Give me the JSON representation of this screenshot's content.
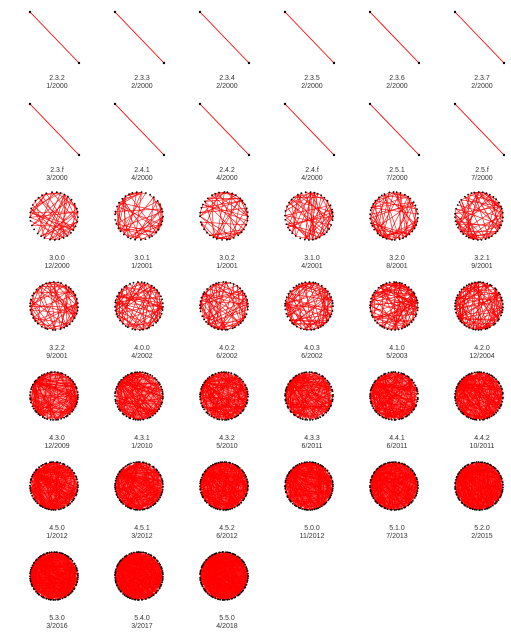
{
  "colors": {
    "edge": "#ff0000",
    "node": "#000000",
    "text": "#333333",
    "background": "#ffffff"
  },
  "panels": [
    {
      "version": "2.3.2",
      "date": "1/2000"
    },
    {
      "version": "2.3.3",
      "date": "2/2000"
    },
    {
      "version": "2.3.4",
      "date": "2/2000"
    },
    {
      "version": "2.3.5",
      "date": "2/2000"
    },
    {
      "version": "2.3.6",
      "date": "2/2000"
    },
    {
      "version": "2.3.7",
      "date": "2/2000"
    },
    {
      "version": "2.3.f",
      "date": "3/2000"
    },
    {
      "version": "2.4.1",
      "date": "4/2000"
    },
    {
      "version": "2.4.2",
      "date": "4/2000"
    },
    {
      "version": "2.4.f",
      "date": "4/2000"
    },
    {
      "version": "2.5.1",
      "date": "7/2000"
    },
    {
      "version": "2.5.f",
      "date": "7/2000"
    },
    {
      "version": "3.0.0",
      "date": "12/2000"
    },
    {
      "version": "3.0.1",
      "date": "1/2001"
    },
    {
      "version": "3.0.2",
      "date": "1/2001"
    },
    {
      "version": "3.1.0",
      "date": "4/2001"
    },
    {
      "version": "3.2.0",
      "date": "8/2001"
    },
    {
      "version": "3.2.1",
      "date": "9/2001"
    },
    {
      "version": "3.2.2",
      "date": "9/2001"
    },
    {
      "version": "4.0.0",
      "date": "4/2002"
    },
    {
      "version": "4.0.2",
      "date": "6/2002"
    },
    {
      "version": "4.0.3",
      "date": "6/2002"
    },
    {
      "version": "4.1.0",
      "date": "5/2003"
    },
    {
      "version": "4.2.0",
      "date": "12/2004"
    },
    {
      "version": "4.3.0",
      "date": "12/2009"
    },
    {
      "version": "4.3.1",
      "date": "1/2010"
    },
    {
      "version": "4.3.2",
      "date": "5/2010"
    },
    {
      "version": "4.3.3",
      "date": "6/2011"
    },
    {
      "version": "4.4.1",
      "date": "6/2011"
    },
    {
      "version": "4.4.2",
      "date": "10/2011"
    },
    {
      "version": "4.5.0",
      "date": "1/2012"
    },
    {
      "version": "4.5.1",
      "date": "3/2012"
    },
    {
      "version": "4.5.2",
      "date": "6/2012"
    },
    {
      "version": "5.0.0",
      "date": "11/2012"
    },
    {
      "version": "5.1.0",
      "date": "7/2013"
    },
    {
      "version": "5.2.0",
      "date": "2/2015"
    },
    {
      "version": "5.3.0",
      "date": "3/2016"
    },
    {
      "version": "5.4.0",
      "date": "3/2017"
    },
    {
      "version": "5.5.0",
      "date": "4/2018"
    }
  ]
}
